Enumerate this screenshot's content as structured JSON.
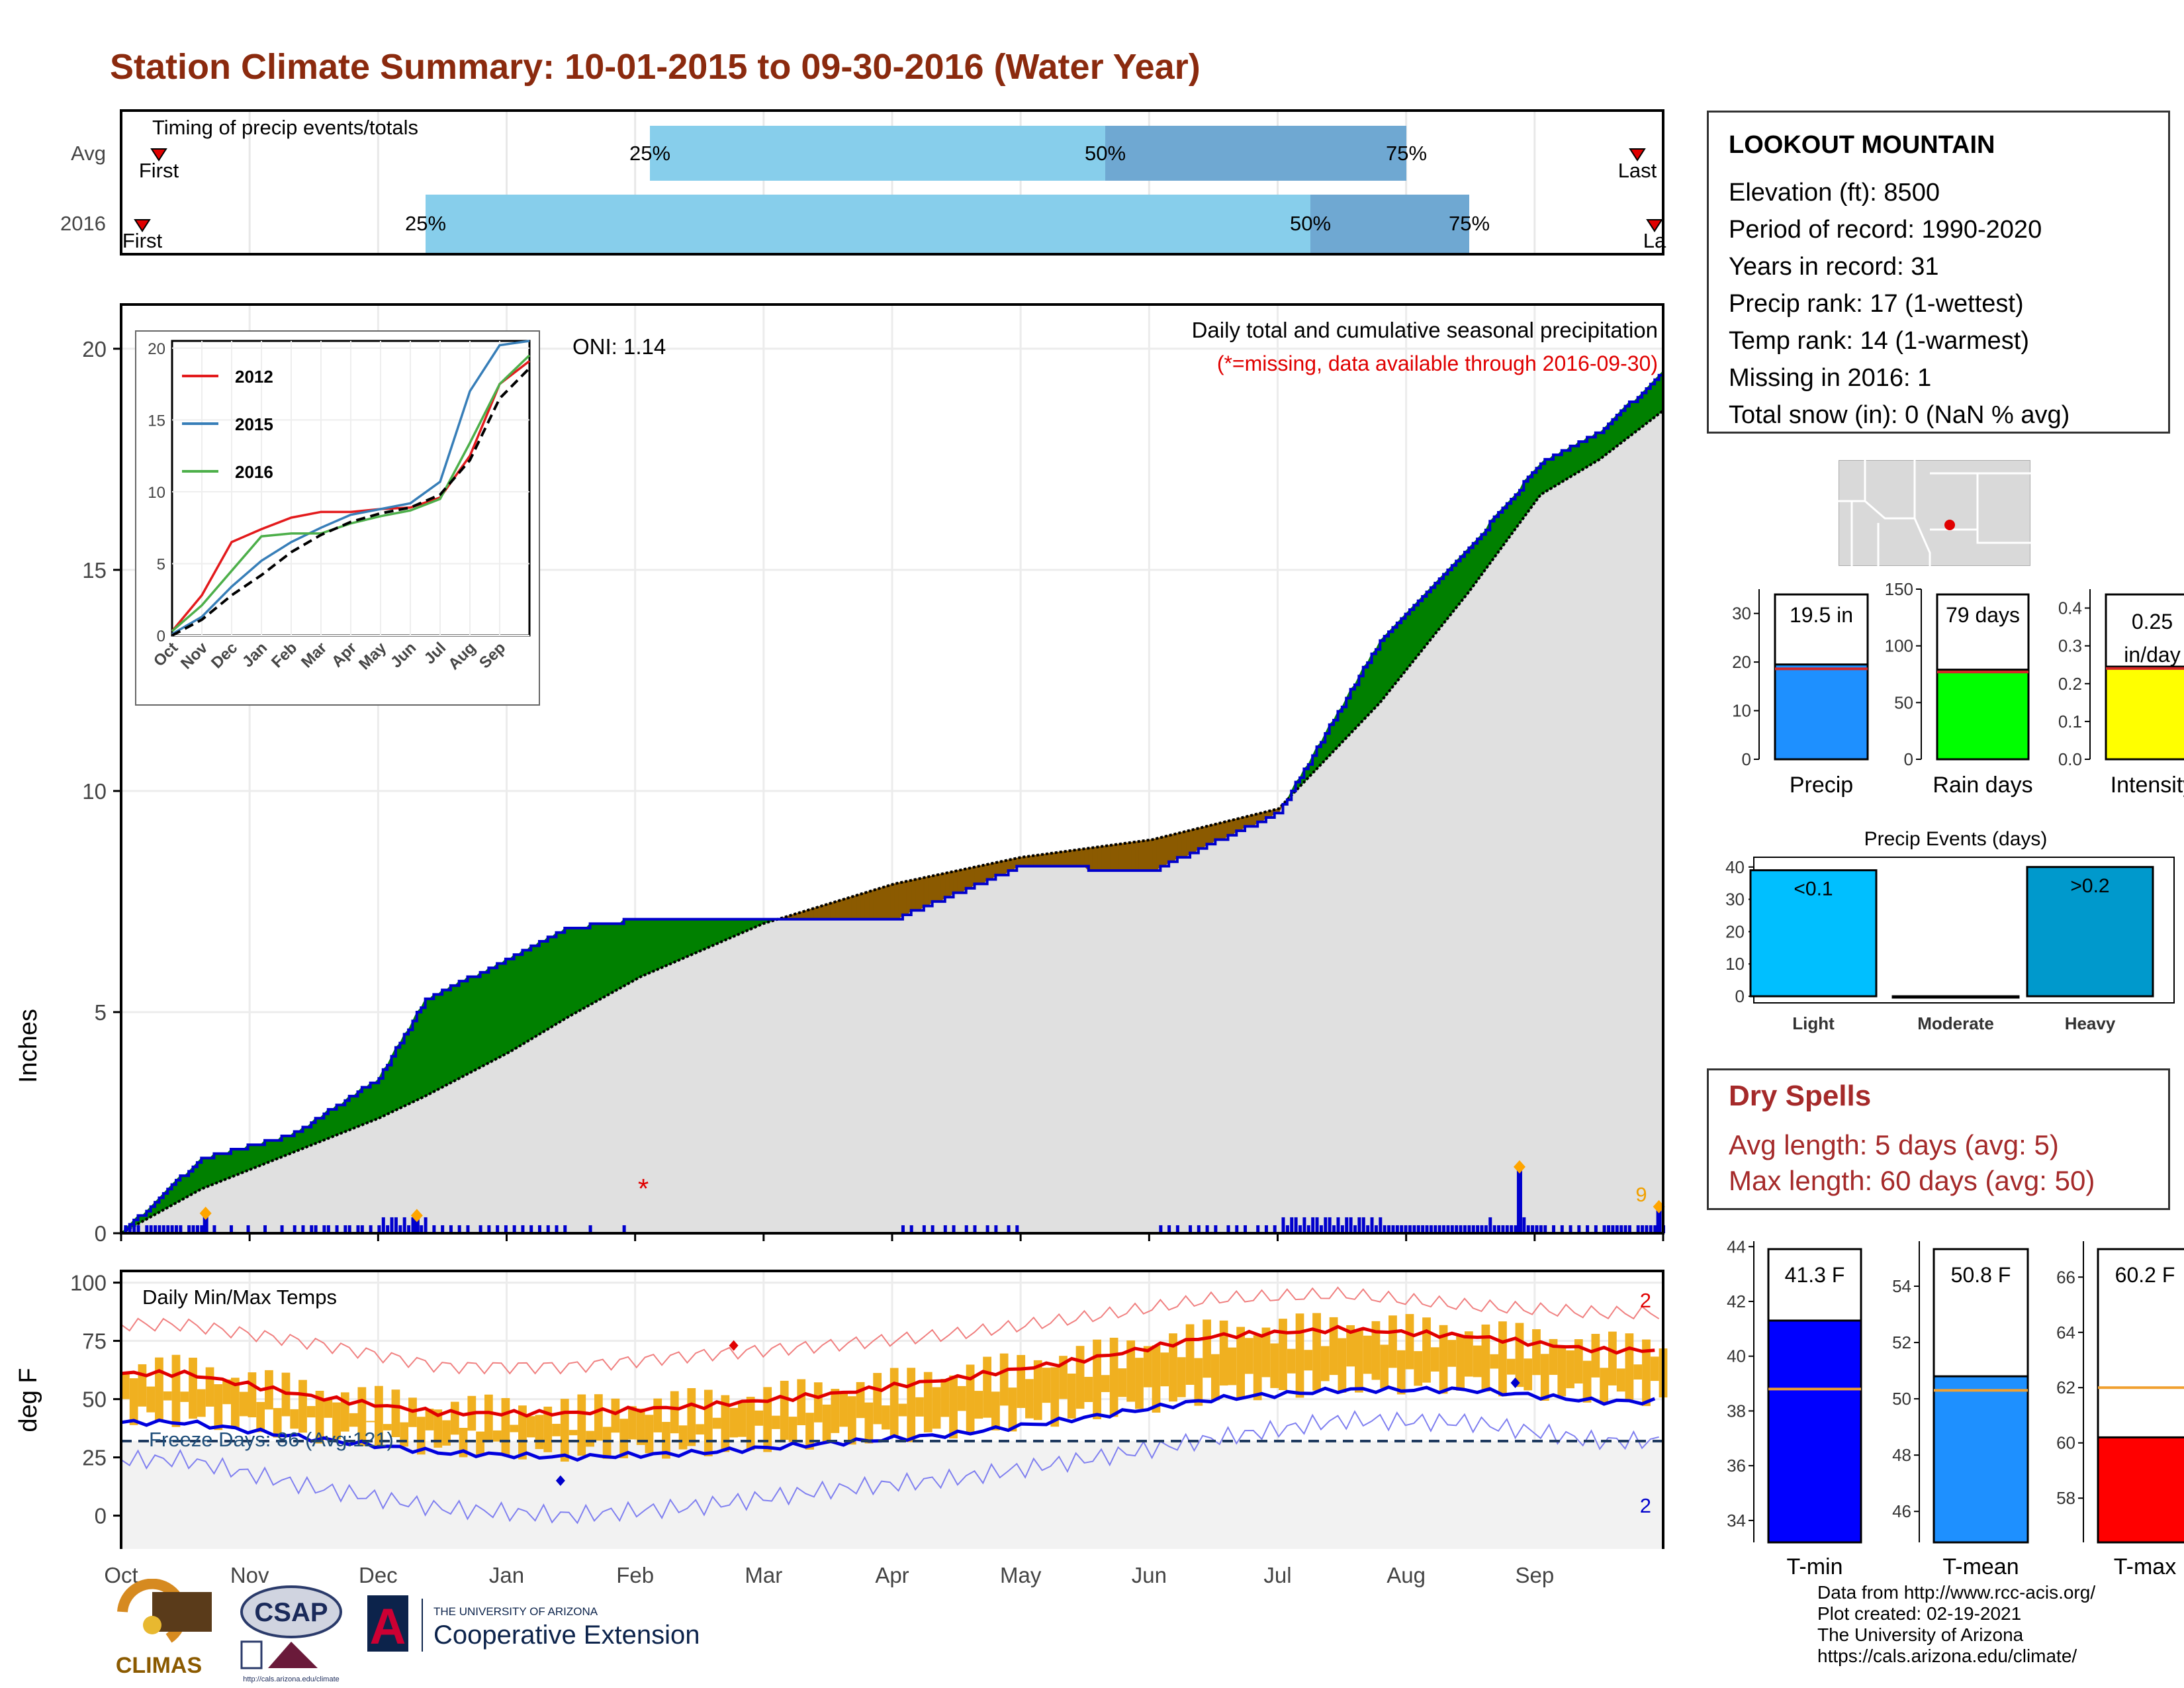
{
  "title": "Station Climate Summary: 10-01-2015 to 09-30-2016 (Water Year)",
  "timing": {
    "title": "Timing of precip events/totals",
    "rows": [
      {
        "label": "Avg",
        "first_label": "First",
        "last_label": "Last",
        "q25": "25%",
        "q50": "50%",
        "q75": "75%"
      },
      {
        "label": "2016",
        "first_label": "First",
        "last_label": "La",
        "q25": "25%",
        "q50": "50%",
        "q75": "75%"
      }
    ],
    "colors": {
      "early": "#87ceeb",
      "late": "#6fa8d2",
      "marker": "#e00000"
    }
  },
  "precip": {
    "ylabel": "Inches",
    "subtitle": "Daily total and cumulative seasonal precipitation",
    "missing_note": "(*=missing, data available through 2016-09-30)",
    "oni": "ONI: 1.14",
    "count_label": "9",
    "y_ticks": [
      "0",
      "5",
      "10",
      "15",
      "20"
    ],
    "colors": {
      "wet": "#008000",
      "dry": "#8b5a00",
      "avg_fill": "#e0e0e0",
      "current": "#0000cc"
    }
  },
  "inset": {
    "legend": [
      "2012",
      "2015",
      "2016"
    ],
    "colors": {
      "2012": "#e31a1c",
      "2015": "#377eb8",
      "2016": "#4daf4a"
    },
    "y_ticks": [
      "0",
      "5",
      "10",
      "15",
      "20"
    ],
    "x_ticks": [
      "Oct",
      "Nov",
      "Dec",
      "Jan",
      "Feb",
      "Mar",
      "Apr",
      "May",
      "Jun",
      "Jul",
      "Aug",
      "Sep"
    ]
  },
  "temps": {
    "title": "Daily Min/Max Temps",
    "ylabel": "deg F",
    "freeze": "Freeze Days: 86 (Avg:121)",
    "max_count": "2",
    "min_count": "2",
    "y_ticks": [
      "0",
      "25",
      "50",
      "75",
      "100"
    ],
    "colors": {
      "band": "#f0b020",
      "max": "#e00000",
      "min": "#0000dd",
      "freeze_line": "#1f3a5f"
    }
  },
  "x_months": [
    "Oct",
    "Nov",
    "Dec",
    "Jan",
    "Feb",
    "Mar",
    "Apr",
    "May",
    "Jun",
    "Jul",
    "Aug",
    "Sep"
  ],
  "station": {
    "name": "LOOKOUT MOUNTAIN",
    "lines": [
      "Elevation (ft): 8500",
      "Period of record: 1990-2020",
      "Years in record: 31",
      "Precip rank: 17 (1-wettest)",
      "Temp rank: 14 (1-warmest)",
      "Missing in 2016: 1",
      "Total snow (in): 0 (NaN % avg)"
    ]
  },
  "summary_bars": [
    {
      "label": "Precip",
      "value_label": "19.5 in",
      "value": 19.5,
      "avg": 18.6,
      "ymax": 35,
      "ticks": [
        "0",
        "10",
        "20",
        "30"
      ],
      "color": "#1e90ff"
    },
    {
      "label": "Rain days",
      "value_label": "79 days",
      "value": 79,
      "avg": 77,
      "ymax": 150,
      "ticks": [
        "0",
        "50",
        "100",
        "150"
      ],
      "color": "#00ff00"
    },
    {
      "label": "Intensity",
      "value_label": "0.25 in/day",
      "value": 0.245,
      "avg": 0.24,
      "ymax": 0.45,
      "ticks": [
        "0.0",
        "0.1",
        "0.2",
        "0.3",
        "0.4"
      ],
      "color": "#ffff00"
    }
  ],
  "events": {
    "title": "Precip Events (days)",
    "categories": [
      "Light",
      "Moderate",
      "Heavy"
    ],
    "bar_labels": [
      "<0.1",
      "",
      ">0.2"
    ],
    "values": [
      39,
      0,
      40
    ],
    "ticks": [
      "0",
      "10",
      "20",
      "30",
      "40"
    ],
    "colors": [
      "#00bfff",
      "#00bfff",
      "#0099cc"
    ]
  },
  "dry_spells": {
    "title": "Dry Spells",
    "lines": [
      "Avg length: 5 days (avg: 5)",
      "Max length: 60 days (avg: 50)"
    ]
  },
  "temp_bars": [
    {
      "label": "T-min",
      "value_label": "41.3 F",
      "value": 41.3,
      "avg": 38.8,
      "ymin": 33.2,
      "ymax": 44.2,
      "ticks": [
        "34",
        "36",
        "38",
        "40",
        "42",
        "44"
      ],
      "color": "#0000ff"
    },
    {
      "label": "T-mean",
      "value_label": "50.8 F",
      "value": 50.8,
      "avg": 50.3,
      "ymin": 44.9,
      "ymax": 55.6,
      "ticks": [
        "46",
        "48",
        "50",
        "52",
        "54"
      ],
      "color": "#1e90ff"
    },
    {
      "label": "T-max",
      "value_label": "60.2 F",
      "value": 60.2,
      "avg": 62.0,
      "ymin": 56.4,
      "ymax": 67.3,
      "ticks": [
        "58",
        "60",
        "62",
        "64",
        "66"
      ],
      "color": "#ff0000"
    }
  ],
  "logos": {
    "climas": "CLIMAS",
    "csap": "CSAP",
    "csap_url": "http://cals.arizona.edu/climate",
    "ua_small": "THE UNIVERSITY OF ARIZONA",
    "ua_big": "Cooperative Extension",
    "ua_letter": "A"
  },
  "credits": [
    "Data from http://www.rcc-acis.org/",
    "Plot created: 02-19-2021",
    "The University of Arizona",
    "https://cals.arizona.edu/climate/"
  ],
  "chart_data": {
    "type": "area",
    "title": "Station Climate Summary: 10-01-2015 to 09-30-2016 (Water Year)",
    "ylabel": "Inches",
    "ylim": [
      0,
      21
    ],
    "x": [
      "2015-10-01",
      "2015-10-20",
      "2015-11-10",
      "2015-12-01",
      "2015-12-12",
      "2016-01-01",
      "2016-01-15",
      "2016-02-01",
      "2016-03-01",
      "2016-04-01",
      "2016-05-01",
      "2016-06-01",
      "2016-07-01",
      "2016-07-25",
      "2016-08-15",
      "2016-09-01",
      "2016-09-15",
      "2016-09-30"
    ],
    "series": [
      {
        "name": "2016",
        "values": [
          0.0,
          1.7,
          2.2,
          3.5,
          5.3,
          6.2,
          6.9,
          7.1,
          7.1,
          7.1,
          8.3,
          8.2,
          9.5,
          13.4,
          15.5,
          17.4,
          18.1,
          19.5
        ]
      },
      {
        "name": "Avg",
        "values": [
          0.0,
          1.0,
          1.8,
          2.6,
          3.1,
          4.1,
          4.9,
          5.8,
          7.0,
          7.9,
          8.5,
          8.9,
          9.6,
          12.0,
          14.5,
          16.7,
          17.5,
          18.6
        ]
      }
    ],
    "temps": {
      "type": "line",
      "ylabel": "deg F",
      "ylim": [
        -10,
        100
      ],
      "x": [
        "Oct",
        "Nov",
        "Dec",
        "Jan",
        "Feb",
        "Mar",
        "Apr",
        "May",
        "Jun",
        "Jul",
        "Aug",
        "Sep"
      ],
      "series": [
        {
          "name": "Avg max",
          "values": [
            61,
            51,
            44,
            44,
            47,
            52,
            59,
            67,
            77,
            80,
            77,
            71
          ]
        },
        {
          "name": "Avg min",
          "values": [
            40,
            33,
            27,
            25,
            27,
            31,
            35,
            42,
            50,
            54,
            54,
            49
          ]
        },
        {
          "name": "Record max",
          "values": [
            82,
            74,
            64,
            64,
            69,
            73,
            78,
            85,
            93,
            95,
            90,
            87
          ]
        },
        {
          "name": "Record min",
          "values": [
            24,
            12,
            3,
            0,
            4,
            11,
            16,
            24,
            33,
            41,
            40,
            32
          ]
        }
      ],
      "freeze_threshold": 32
    },
    "inset": {
      "type": "line",
      "ylim": [
        0,
        20.5
      ],
      "x": [
        "Oct",
        "Nov",
        "Dec",
        "Jan",
        "Feb",
        "Mar",
        "Apr",
        "May",
        "Jun",
        "Jul",
        "Aug",
        "Sep",
        "Sep-end"
      ],
      "series": [
        {
          "name": "2012",
          "values": [
            0.3,
            2.8,
            6.5,
            7.4,
            8.2,
            8.6,
            8.6,
            8.8,
            8.9,
            9.6,
            12.5,
            17.5,
            19.1
          ]
        },
        {
          "name": "2015",
          "values": [
            0.1,
            1.3,
            3.4,
            5.2,
            6.5,
            7.5,
            8.4,
            8.8,
            9.2,
            10.7,
            17.0,
            20.2,
            20.5
          ]
        },
        {
          "name": "2016",
          "values": [
            0.3,
            2.1,
            4.5,
            6.9,
            7.1,
            7.1,
            7.8,
            8.3,
            8.7,
            9.5,
            13.4,
            17.5,
            19.5
          ]
        },
        {
          "name": "Avg",
          "values": [
            0.0,
            1.1,
            2.8,
            4.2,
            5.8,
            7.0,
            7.9,
            8.5,
            8.9,
            9.8,
            12.2,
            16.5,
            18.6
          ]
        }
      ]
    },
    "daily_precip_events": [
      {
        "x": "2015-10-21",
        "y": 0.45
      },
      {
        "x": "2015-12-10",
        "y": 0.4
      },
      {
        "x": "2016-08-27",
        "y": 1.5
      },
      {
        "x": "2016-09-29",
        "y": 0.6
      }
    ]
  }
}
